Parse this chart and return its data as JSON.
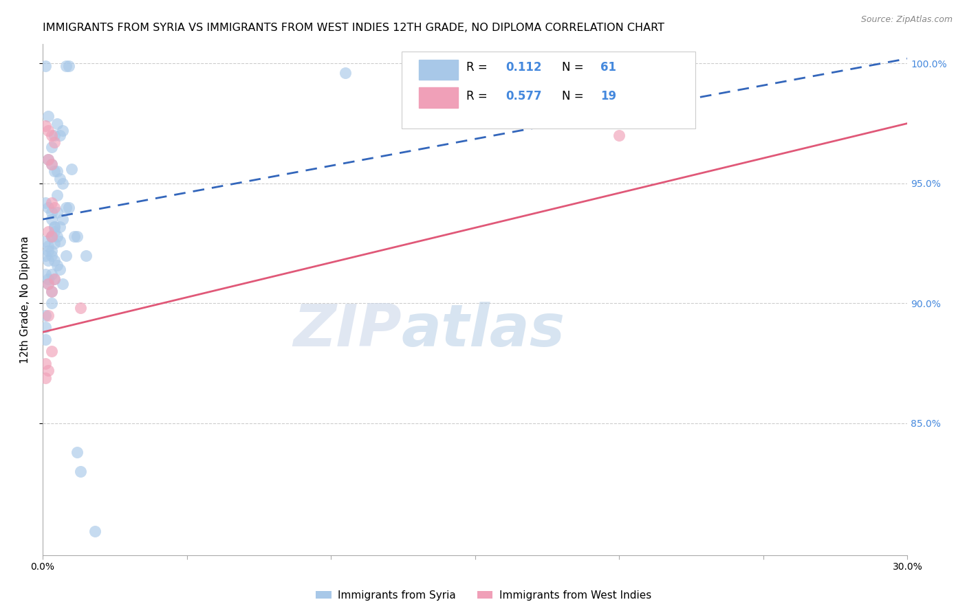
{
  "title": "IMMIGRANTS FROM SYRIA VS IMMIGRANTS FROM WEST INDIES 12TH GRADE, NO DIPLOMA CORRELATION CHART",
  "source": "Source: ZipAtlas.com",
  "ylabel": "12th Grade, No Diploma",
  "x_min": 0.0,
  "x_max": 0.3,
  "y_min": 0.795,
  "y_max": 1.008,
  "x_ticks": [
    0.0,
    0.05,
    0.1,
    0.15,
    0.2,
    0.25,
    0.3
  ],
  "y_ticks": [
    0.85,
    0.9,
    0.95,
    1.0
  ],
  "y_tick_labels": [
    "85.0%",
    "90.0%",
    "95.0%",
    "100.0%"
  ],
  "syria_color": "#A8C8E8",
  "west_color": "#F0A0B8",
  "syria_line_color": "#3366BB",
  "west_line_color": "#E05878",
  "background_color": "#FFFFFF",
  "grid_color": "#CCCCCC",
  "watermark_zip": "ZIP",
  "watermark_atlas": "atlas",
  "title_fontsize": 11.5,
  "axis_label_fontsize": 11,
  "tick_fontsize": 10,
  "right_tick_color": "#4488DD",
  "syria_line_x0": 0.0,
  "syria_line_y0": 0.935,
  "syria_line_x1": 0.3,
  "syria_line_y1": 1.002,
  "west_line_x0": 0.0,
  "west_line_y0": 0.888,
  "west_line_x1": 0.3,
  "west_line_y1": 0.975,
  "syria_x": [
    0.001,
    0.009,
    0.008,
    0.002,
    0.004,
    0.003,
    0.005,
    0.006,
    0.007,
    0.002,
    0.003,
    0.004,
    0.005,
    0.006,
    0.007,
    0.001,
    0.002,
    0.003,
    0.003,
    0.004,
    0.005,
    0.003,
    0.004,
    0.007,
    0.008,
    0.002,
    0.001,
    0.002,
    0.005,
    0.006,
    0.004,
    0.003,
    0.009,
    0.011,
    0.012,
    0.006,
    0.008,
    0.01,
    0.015,
    0.001,
    0.002,
    0.002,
    0.003,
    0.003,
    0.001,
    0.001,
    0.001,
    0.004,
    0.005,
    0.001,
    0.002,
    0.003,
    0.003,
    0.004,
    0.005,
    0.006,
    0.003,
    0.004,
    0.007,
    0.013,
    0.105
  ],
  "syria_y": [
    0.999,
    0.999,
    0.999,
    0.978,
    0.97,
    0.965,
    0.975,
    0.97,
    0.972,
    0.96,
    0.958,
    0.955,
    0.955,
    0.952,
    0.95,
    0.942,
    0.94,
    0.938,
    0.935,
    0.932,
    0.945,
    0.928,
    0.925,
    0.935,
    0.94,
    0.922,
    0.92,
    0.918,
    0.938,
    0.932,
    0.93,
    0.928,
    0.94,
    0.928,
    0.928,
    0.926,
    0.92,
    0.956,
    0.92,
    0.912,
    0.91,
    0.908,
    0.905,
    0.9,
    0.895,
    0.89,
    0.885,
    0.932,
    0.928,
    0.926,
    0.924,
    0.922,
    0.92,
    0.918,
    0.916,
    0.914,
    0.912,
    0.91,
    0.908,
    0.83,
    0.996
  ],
  "west_x": [
    0.001,
    0.002,
    0.003,
    0.004,
    0.002,
    0.003,
    0.003,
    0.004,
    0.002,
    0.003,
    0.004,
    0.002,
    0.003,
    0.002,
    0.003,
    0.001,
    0.002,
    0.013,
    0.001
  ],
  "west_y": [
    0.974,
    0.972,
    0.97,
    0.967,
    0.96,
    0.958,
    0.942,
    0.94,
    0.93,
    0.928,
    0.91,
    0.908,
    0.905,
    0.895,
    0.88,
    0.875,
    0.872,
    0.898,
    0.869
  ],
  "west_outlier_x": [
    0.2
  ],
  "west_outlier_y": [
    0.97
  ],
  "syria_low_x": [
    0.012
  ],
  "syria_low_y": [
    0.838
  ],
  "syria_low2_x": [
    0.018
  ],
  "syria_low2_y": [
    0.805
  ]
}
